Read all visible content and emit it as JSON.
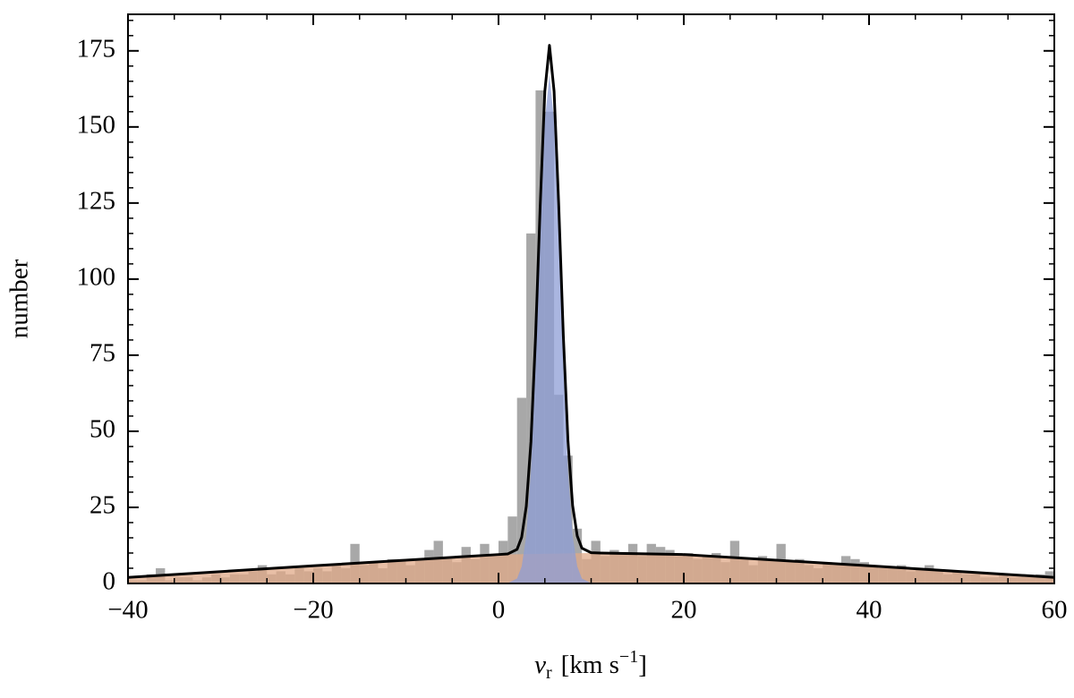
{
  "chart_data": {
    "type": "histogram",
    "bins": [
      -40,
      -39,
      -38,
      -37,
      -36,
      -35,
      -34,
      -33,
      -32,
      -31,
      -30,
      -29,
      -28,
      -27,
      -26,
      -25,
      -24,
      -23,
      -22,
      -21,
      -20,
      -19,
      -18,
      -17,
      -16,
      -15,
      -14,
      -13,
      -12,
      -11,
      -10,
      -9,
      -8,
      -7,
      -6,
      -5,
      -4,
      -3,
      -2,
      -1,
      0,
      1,
      2,
      3,
      4,
      5,
      6,
      7,
      8,
      9,
      10,
      11,
      12,
      13,
      14,
      15,
      16,
      17,
      18,
      19,
      20,
      21,
      22,
      23,
      24,
      25,
      26,
      27,
      28,
      29,
      30,
      31,
      32,
      33,
      34,
      35,
      36,
      37,
      38,
      39,
      40,
      41,
      42,
      43,
      44,
      45,
      46,
      47,
      48,
      49,
      50,
      51,
      52,
      53,
      54,
      55,
      56,
      57,
      58,
      59,
      60
    ],
    "counts": [
      1,
      1,
      3,
      5,
      1,
      2,
      2,
      1,
      2,
      3,
      2,
      3,
      3,
      4,
      6,
      3,
      4,
      3,
      5,
      4,
      5,
      4,
      6,
      5,
      13,
      6,
      7,
      5,
      8,
      8,
      6,
      8,
      11,
      14,
      8,
      7,
      12,
      8,
      13,
      9,
      14,
      22,
      61,
      115,
      162,
      155,
      62,
      42,
      18,
      8,
      14,
      9,
      11,
      10,
      13,
      9,
      13,
      12,
      11,
      9,
      10,
      8,
      9,
      10,
      7,
      14,
      8,
      6,
      9,
      8,
      13,
      7,
      8,
      6,
      5,
      7,
      6,
      9,
      8,
      7,
      6,
      5,
      5,
      6,
      4,
      5,
      6,
      4,
      3,
      4,
      3,
      3,
      2,
      2,
      3,
      2,
      2,
      2,
      3,
      4
    ],
    "color": "#a8a8a8",
    "areas": [
      {
        "color": "#e0aa88",
        "x": [
          -40,
          0,
          10,
          20,
          60
        ],
        "values": [
          2,
          9.5,
          10,
          9.5,
          2
        ]
      },
      {
        "color": "#8d9dd6",
        "x": [
          0,
          1,
          2,
          2.5,
          3,
          3.5,
          4,
          4.5,
          5,
          5.5,
          6,
          6.5,
          7,
          7.5,
          8,
          8.5,
          9,
          10,
          11
        ],
        "values": [
          0,
          0.1,
          1.6,
          5.6,
          15.7,
          36.8,
          71.3,
          114.4,
          151.9,
          167,
          151.9,
          114.4,
          71.3,
          36.8,
          15.7,
          5.6,
          1.6,
          0.1,
          0
        ]
      }
    ],
    "line": {
      "color": "#000000",
      "x": [
        -40,
        -20,
        0,
        1,
        2,
        2.5,
        3,
        3.5,
        4,
        4.5,
        5,
        5.5,
        6,
        6.5,
        7,
        7.5,
        8,
        8.5,
        9,
        10,
        11,
        20,
        40,
        60
      ],
      "values": [
        2,
        5.8,
        9.5,
        9.7,
        11.2,
        15.2,
        25.4,
        46.5,
        81,
        124.2,
        161.7,
        176.8,
        161.7,
        124.3,
        81.2,
        46.7,
        25.6,
        15.6,
        11.6,
        10.1,
        10,
        9.5,
        5.8,
        2
      ]
    },
    "x_label": {
      "var": "v",
      "sub": "r",
      "unit": "[km s",
      "sup": "−1",
      "close": "]"
    },
    "y_label": "number",
    "xlim": [
      -40,
      60
    ],
    "ylim": [
      0,
      187
    ],
    "xticks": [
      {
        "value": -40,
        "label": "−40"
      },
      {
        "value": -20,
        "label": "−20"
      },
      0,
      20,
      40,
      60
    ],
    "yticks": [
      0,
      25,
      50,
      75,
      100,
      125,
      150,
      175
    ],
    "xminorticks": [
      -35,
      -30,
      -25,
      -15,
      -10,
      -5,
      5,
      10,
      15,
      25,
      30,
      35,
      45,
      50,
      55
    ],
    "yminorticks": [
      5,
      10,
      15,
      20,
      30,
      35,
      40,
      45,
      55,
      60,
      65,
      70,
      80,
      85,
      90,
      95,
      105,
      110,
      115,
      120,
      130,
      135,
      140,
      145,
      155,
      160,
      165,
      170,
      180,
      185
    ]
  }
}
